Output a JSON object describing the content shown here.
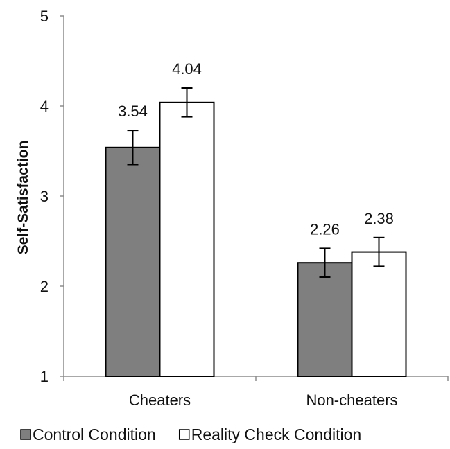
{
  "chart_data": {
    "type": "bar",
    "title": "",
    "xlabel": "",
    "ylabel": "Self-Satisfaction",
    "ylim": [
      1,
      5
    ],
    "yticks": [
      1,
      2,
      3,
      4,
      5
    ],
    "categories": [
      "Cheaters",
      "Non-cheaters"
    ],
    "series": [
      {
        "name": "Control Condition",
        "color": "#7f7f7f",
        "values": [
          3.54,
          2.26
        ],
        "error": [
          0.19,
          0.16
        ],
        "labels": [
          "3.54",
          "2.26"
        ]
      },
      {
        "name": "Reality Check Condition",
        "color": "#ffffff",
        "values": [
          4.04,
          2.38
        ],
        "error": [
          0.16,
          0.16
        ],
        "labels": [
          "4.04",
          "2.38"
        ]
      }
    ],
    "grid": false,
    "legend": "bottom"
  }
}
